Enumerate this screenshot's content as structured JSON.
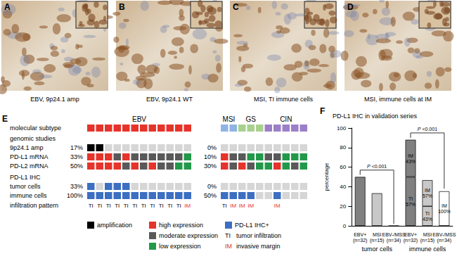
{
  "panels": [
    {
      "letter": "A",
      "caption": "EBV, 9p24.1 amp"
    },
    {
      "letter": "B",
      "caption": "EBV, 9p24.1 WT"
    },
    {
      "letter": "C",
      "caption": "MSI, TI immune cells"
    },
    {
      "letter": "D",
      "caption": "MSI, immune cells at IM"
    }
  ],
  "panel_e": {
    "letter": "E",
    "row_labels": {
      "subtype": "molecular subtype",
      "genomic": "genomic studies",
      "amp": "9p24.1 amp",
      "pdl1": "PD-L1 mRNA",
      "pdl2": "PD-L2 mRNA",
      "ihc": "PD-L1 IHC",
      "tumor": "tumor cells",
      "immune": "immune cells",
      "pattern": "infiltration pattern"
    },
    "groups": [
      {
        "subtypes": [
          {
            "label": "EBV",
            "count": 12,
            "color": "#e5342b"
          }
        ],
        "percent": {
          "amp": "17%",
          "pdl1": "33%",
          "pdl2": "50%",
          "tumor": "33%",
          "immune": "100%"
        },
        "amp": [
          "amp",
          "amp",
          null,
          null,
          null,
          null,
          null,
          null,
          null,
          null,
          null,
          null
        ],
        "pdl1": [
          "high",
          "high",
          "high",
          "moderate",
          "high",
          "moderate",
          "moderate",
          "moderate",
          "moderate",
          "moderate",
          "moderate",
          "low"
        ],
        "pdl2": [
          "high",
          "high",
          "high",
          "high",
          "moderate",
          "high",
          "moderate",
          "high",
          "moderate",
          "moderate",
          "low",
          "low"
        ],
        "tumor": [
          true,
          false,
          true,
          true,
          true,
          false,
          false,
          false,
          false,
          false,
          false,
          false
        ],
        "immune": [
          true,
          true,
          true,
          true,
          true,
          true,
          true,
          true,
          true,
          true,
          true,
          true
        ],
        "pattern": [
          "TI",
          "TI",
          "TI",
          "TI",
          "TI",
          "TI",
          "TI",
          "TI",
          "TI",
          "TI",
          "TI",
          "IM"
        ]
      },
      {
        "subtypes": [
          {
            "label": "MSI",
            "count": 2,
            "color": "#8fb4e3"
          },
          {
            "label": "GS",
            "count": 3,
            "color": "#a9d18e"
          },
          {
            "label": "CIN",
            "count": 5,
            "color": "#9b80c8"
          }
        ],
        "percent": {
          "amp": "0%",
          "pdl1": "10%",
          "pdl2": "30%",
          "tumor": "0%",
          "immune": "50%"
        },
        "amp": [
          null,
          null,
          null,
          null,
          null,
          null,
          null,
          null,
          null,
          null
        ],
        "pdl1": [
          "high",
          "moderate",
          "moderate",
          "low",
          "low",
          "moderate",
          "moderate",
          "low",
          "low",
          "low"
        ],
        "pdl2": [
          "high",
          "moderate",
          "high",
          "moderate",
          "low",
          "low",
          "high",
          "low",
          "moderate",
          "low"
        ],
        "tumor": [
          false,
          false,
          false,
          false,
          false,
          false,
          false,
          false,
          false,
          false
        ],
        "immune": [
          true,
          true,
          true,
          true,
          false,
          false,
          true,
          false,
          false,
          false
        ],
        "pattern": [
          "TI",
          "IM",
          "IM",
          "IM",
          null,
          null,
          "IM",
          null,
          null,
          null
        ]
      }
    ],
    "legend": [
      {
        "key": "amp",
        "color": "#000000",
        "label": "amplification"
      },
      {
        "key": "high",
        "color": "#e5342b",
        "label": "high expression"
      },
      {
        "key": "moderate",
        "color": "#595959",
        "label": "moderate expression"
      },
      {
        "key": "low",
        "color": "#22994a",
        "label": "low expression"
      },
      {
        "key": "ihc",
        "color": "#3c6fc2",
        "label": "PD-L1 IHC+"
      }
    ],
    "pattern_legend": [
      {
        "abbr": "TI",
        "color": "#000000",
        "label": "tumor infiltration"
      },
      {
        "abbr": "IM",
        "color": "#e5342b",
        "label": "invasive margin"
      }
    ]
  },
  "panel_f_letter": "F",
  "chart_data": {
    "type": "bar",
    "title": "PD-L1 IHC in validation series",
    "ylabel": "percentage",
    "categories": [
      "EBV+ (n=32)",
      "MSI (n=15)",
      "EBV-/MSS (n=34)",
      "EBV+ (n=32)",
      "MSI (n=15)",
      "EBV-/MSS (n=34)"
    ],
    "groups": [
      {
        "label": "tumor cells",
        "from": 0,
        "to": 2
      },
      {
        "label": "immune cells",
        "from": 3,
        "to": 5
      }
    ],
    "series": [
      {
        "values": [
          50,
          33.3,
          0,
          50,
          20,
          0
        ],
        "colors": [
          "#808080",
          "#c8c8c8",
          "#ffffff",
          "#808080",
          "#c8c8c8",
          "#ffffff"
        ]
      },
      {
        "values": [
          null,
          null,
          null,
          38,
          26.7,
          35.3
        ],
        "colors": [
          "#808080",
          "#c8c8c8",
          "#ffffff",
          "#808080",
          "#c8c8c8",
          "#ffffff"
        ]
      }
    ],
    "annotations": [
      {
        "series": 1,
        "index": 3,
        "text": "IM 43%"
      },
      {
        "series": 0,
        "index": 3,
        "text": "TI 57%"
      },
      {
        "series": 1,
        "index": 4,
        "text": "IM 57%"
      },
      {
        "series": 0,
        "index": 4,
        "text": "TI 43%"
      },
      {
        "series": 1,
        "index": 5,
        "text": "IM 100%"
      }
    ],
    "brackets": [
      {
        "from": 0,
        "to": 2,
        "y": 57,
        "ends": [
          52,
          2
        ],
        "label": "P <0.001"
      },
      {
        "from": 3,
        "to": 5,
        "y": 95,
        "ends": [
          90,
          38
        ],
        "label": "P <0.001"
      }
    ],
    "stacked": true,
    "grid": false,
    "ylim": [
      0,
      100
    ],
    "yticks": [
      0,
      20,
      40,
      60,
      80,
      100
    ]
  }
}
